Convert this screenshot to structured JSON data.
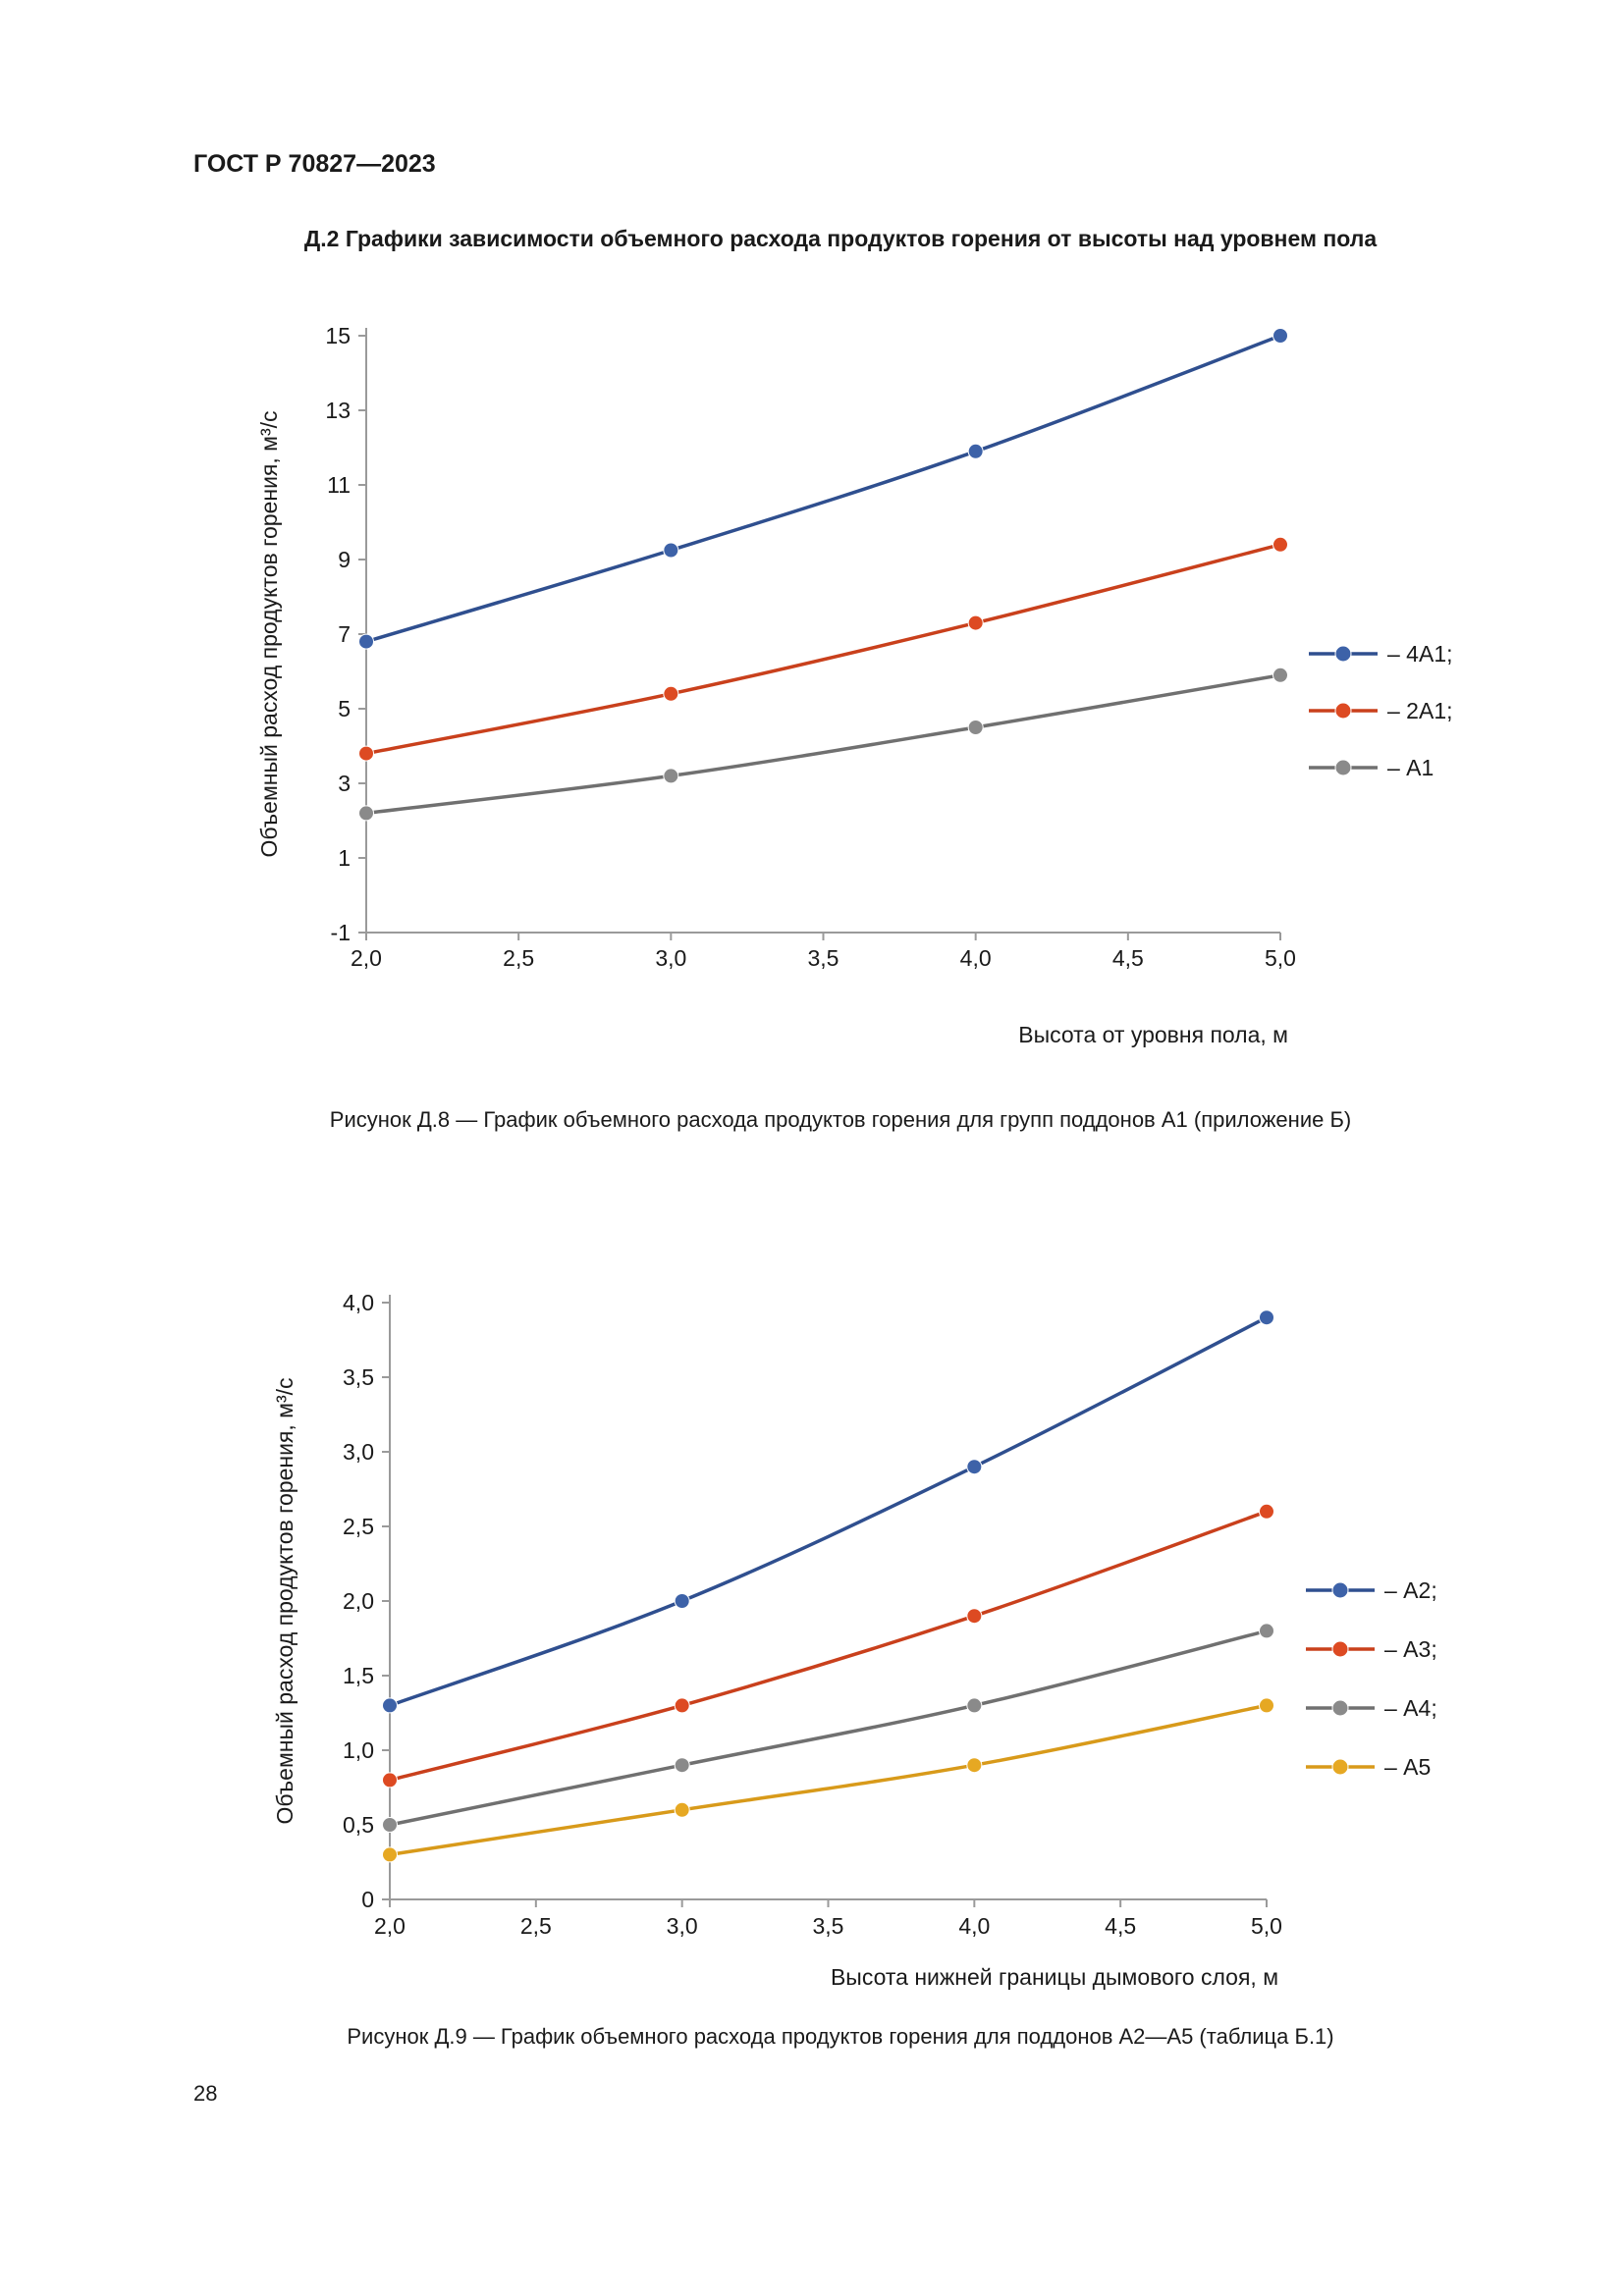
{
  "header": {
    "standard": "ГОСТ Р 70827—2023"
  },
  "section_title": "Д.2 Графики зависимости объемного расхода продуктов горения от высоты над уровнем пола",
  "figures": [
    {
      "caption": "Рисунок Д.8 — График объемного расхода продуктов горения для групп поддонов А1 (приложение Б)"
    },
    {
      "caption": "Рисунок Д.9 — График объемного расхода продуктов горения для поддонов А2—А5 (таблица Б.1)"
    }
  ],
  "page_number": "28",
  "chart_data": [
    {
      "type": "line",
      "x": [
        2.0,
        3.0,
        4.0,
        5.0
      ],
      "xticks": [
        "2,0",
        "2,5",
        "3,0",
        "3,5",
        "4,0",
        "4,5",
        "5,0"
      ],
      "xtick_values": [
        2.0,
        2.5,
        3.0,
        3.5,
        4.0,
        4.5,
        5.0
      ],
      "yticks": [
        "-1",
        "1",
        "3",
        "5",
        "7",
        "9",
        "11",
        "13",
        "15"
      ],
      "ytick_values": [
        -1,
        1,
        3,
        5,
        7,
        9,
        11,
        13,
        15
      ],
      "xlim": [
        2.0,
        5.0
      ],
      "ylim": [
        -1,
        15
      ],
      "xlabel": "Высота от уровня пола, м",
      "ylabel": "Объемный расход продуктов горения, м³/с",
      "grid": false,
      "legend_position": "right",
      "series": [
        {
          "name": "– 4А1;",
          "color": "#2f4f8f",
          "marker": "#3d62a8",
          "values": [
            6.8,
            9.25,
            11.9,
            15.0
          ]
        },
        {
          "name": "– 2А1;",
          "color": "#c9401c",
          "marker": "#dd4a22",
          "values": [
            3.8,
            5.4,
            7.3,
            9.4
          ]
        },
        {
          "name": "– А1",
          "color": "#707070",
          "marker": "#8a8a8a",
          "values": [
            2.2,
            3.2,
            4.5,
            5.9
          ]
        }
      ]
    },
    {
      "type": "line",
      "x": [
        2.0,
        3.0,
        4.0,
        5.0
      ],
      "xticks": [
        "2,0",
        "2,5",
        "3,0",
        "3,5",
        "4,0",
        "4,5",
        "5,0"
      ],
      "xtick_values": [
        2.0,
        2.5,
        3.0,
        3.5,
        4.0,
        4.5,
        5.0
      ],
      "yticks": [
        "0",
        "0,5",
        "1,0",
        "1,5",
        "2,0",
        "2,5",
        "3,0",
        "3,5",
        "4,0"
      ],
      "ytick_values": [
        0,
        0.5,
        1.0,
        1.5,
        2.0,
        2.5,
        3.0,
        3.5,
        4.0
      ],
      "xlim": [
        2.0,
        5.0
      ],
      "ylim": [
        0,
        4.0
      ],
      "xlabel": "Высота нижней границы дымового слоя, м",
      "ylabel": "Объемный расход продуктов горения, м³/с",
      "grid": false,
      "legend_position": "right",
      "series": [
        {
          "name": "– А2;",
          "color": "#2f4f8f",
          "marker": "#3d62a8",
          "values": [
            1.3,
            2.0,
            2.9,
            3.9
          ]
        },
        {
          "name": "– А3;",
          "color": "#c9401c",
          "marker": "#dd4a22",
          "values": [
            0.8,
            1.3,
            1.9,
            2.6
          ]
        },
        {
          "name": "– А4;",
          "color": "#707070",
          "marker": "#8a8a8a",
          "values": [
            0.5,
            0.9,
            1.3,
            1.8
          ]
        },
        {
          "name": "– А5",
          "color": "#d89a1a",
          "marker": "#e6a823",
          "values": [
            0.3,
            0.6,
            0.9,
            1.3
          ]
        }
      ]
    }
  ]
}
